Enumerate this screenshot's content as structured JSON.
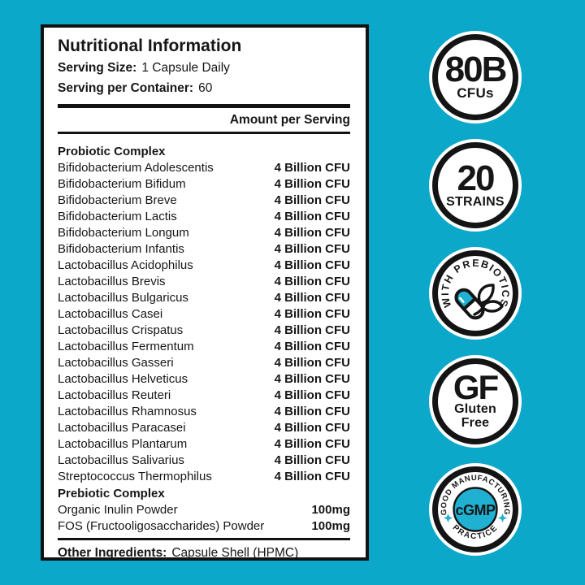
{
  "colors": {
    "background": "#0BA8C9",
    "accent": "#1FB0D2",
    "ink": "#161616",
    "panel": "#FFFFFF"
  },
  "label": {
    "title": "Nutritional Information",
    "serving_size_label": "Serving Size:",
    "serving_size_value": "1 Capsule Daily",
    "servings_label": "Serving per Container:",
    "servings_value": "60",
    "amount_header": "Amount per Serving",
    "probiotic_header": "Probiotic Complex",
    "probiotic_rows": [
      {
        "name": "Bifidobacterium Adolescentis",
        "amount": "4 Billion CFU"
      },
      {
        "name": "Bifidobacterium Bifidum",
        "amount": "4 Billion CFU"
      },
      {
        "name": "Bifidobacterium Breve",
        "amount": "4 Billion CFU"
      },
      {
        "name": "Bifidobacterium Lactis",
        "amount": "4 Billion CFU"
      },
      {
        "name": "Bifidobacterium Longum",
        "amount": "4 Billion CFU"
      },
      {
        "name": "Bifidobacterium Infantis",
        "amount": "4 Billion CFU"
      },
      {
        "name": "Lactobacillus Acidophilus",
        "amount": "4 Billion CFU"
      },
      {
        "name": "Lactobacillus Brevis",
        "amount": "4 Billion CFU"
      },
      {
        "name": "Lactobacillus Bulgaricus",
        "amount": "4 Billion CFU"
      },
      {
        "name": "Lactobacillus Casei",
        "amount": "4 Billion CFU"
      },
      {
        "name": "Lactobacillus Crispatus",
        "amount": "4 Billion CFU"
      },
      {
        "name": "Lactobacillus Fermentum",
        "amount": "4 Billion CFU"
      },
      {
        "name": "Lactobacillus Gasseri",
        "amount": "4 Billion CFU"
      },
      {
        "name": "Lactobacillus Helveticus",
        "amount": "4 Billion CFU"
      },
      {
        "name": "Lactobacillus Reuteri",
        "amount": "4 Billion CFU"
      },
      {
        "name": "Lactobacillus Rhamnosus",
        "amount": "4 Billion CFU"
      },
      {
        "name": "Lactobacillus Paracasei",
        "amount": "4 Billion CFU"
      },
      {
        "name": "Lactobacillus Plantarum",
        "amount": "4 Billion CFU"
      },
      {
        "name": "Lactobacillus Salivarius",
        "amount": "4 Billion CFU"
      },
      {
        "name": "Streptococcus Thermophilus",
        "amount": "4 Billion CFU"
      }
    ],
    "prebiotic_header": "Prebiotic Complex",
    "prebiotic_rows": [
      {
        "name": "Organic Inulin Powder",
        "amount": "100mg"
      },
      {
        "name": "FOS (Fructooligosaccharides) Powder",
        "amount": "100mg"
      }
    ],
    "other_label": "Other Ingredients:",
    "other_value": "Capsule Shell (HPMC)"
  },
  "badges": {
    "cfu": {
      "value": "80B",
      "label": "CFUs"
    },
    "strains": {
      "value": "20",
      "label": "STRAINS"
    },
    "prebiotics": {
      "arc_text": "WITH PREBIOTICS"
    },
    "gluten_free": {
      "value": "GF",
      "label_line1": "Gluten",
      "label_line2": "Free"
    },
    "cgmp": {
      "arc_top": "GOOD MANUFACTURING",
      "arc_bottom": "PRACTICE",
      "value": "cGMP"
    }
  }
}
